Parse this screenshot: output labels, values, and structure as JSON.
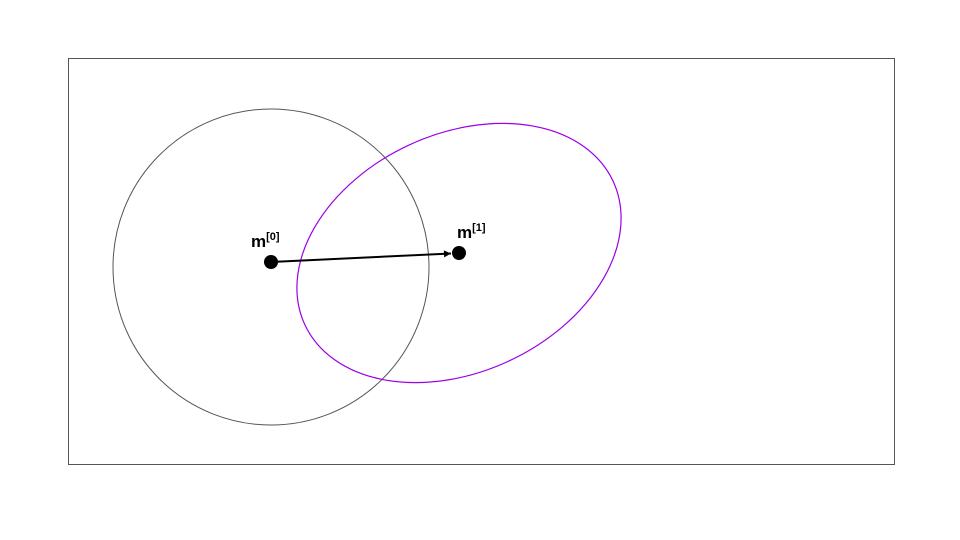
{
  "diagram": {
    "nodes": [
      {
        "id": "m0",
        "base": "m",
        "superscript": "[0]"
      },
      {
        "id": "m1",
        "base": "m",
        "superscript": "[1]"
      }
    ],
    "edges": [
      {
        "from": "m0",
        "to": "m1",
        "style": "arrow"
      }
    ],
    "colors": {
      "frame": "#555555",
      "circle": "#555555",
      "ellipse": "#9b00e8",
      "arrow": "#000000",
      "points": "#000000"
    }
  }
}
